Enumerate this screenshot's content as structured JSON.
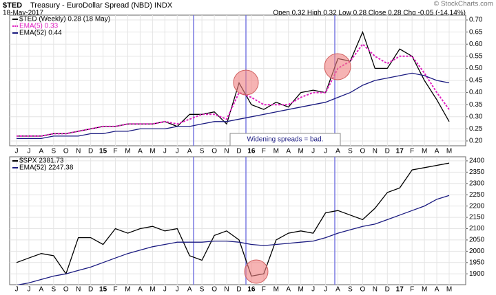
{
  "chart_data": [
    {
      "type": "line",
      "symbol": "$TED",
      "title": "Treasury - EuroDollar Spread (NBD) INDX",
      "date": "18-May-2017",
      "quote": "Open 0.32  High 0.32  Low 0.28  Close 0.28  Chg -0.05 (-14.14%)",
      "credit": "© StockCharts.com",
      "annotation": "Widening spreads = bad.",
      "categories": [
        "J",
        "J",
        "A",
        "S",
        "O",
        "N",
        "D",
        "15",
        "F",
        "M",
        "A",
        "M",
        "J",
        "J",
        "A",
        "S",
        "O",
        "N",
        "D",
        "16",
        "F",
        "M",
        "A",
        "M",
        "J",
        "J",
        "A",
        "S",
        "O",
        "N",
        "D",
        "17",
        "F",
        "M",
        "A",
        "M"
      ],
      "series": [
        {
          "name": "$TED (Weekly) 0.28 (18 May)",
          "color": "#000000",
          "values": [
            0.22,
            0.22,
            0.22,
            0.23,
            0.23,
            0.24,
            0.25,
            0.26,
            0.26,
            0.27,
            0.27,
            0.27,
            0.28,
            0.26,
            0.31,
            0.31,
            0.32,
            0.27,
            0.44,
            0.35,
            0.33,
            0.36,
            0.34,
            0.4,
            0.41,
            0.4,
            0.54,
            0.53,
            0.65,
            0.5,
            0.5,
            0.58,
            0.55,
            0.45,
            0.37,
            0.28
          ]
        },
        {
          "name": "EMA(5) 0.33",
          "color": "#e020c0",
          "values": [
            0.22,
            0.22,
            0.22,
            0.23,
            0.23,
            0.24,
            0.25,
            0.26,
            0.26,
            0.27,
            0.27,
            0.27,
            0.28,
            0.27,
            0.29,
            0.31,
            0.31,
            0.29,
            0.4,
            0.38,
            0.35,
            0.35,
            0.35,
            0.38,
            0.4,
            0.4,
            0.5,
            0.53,
            0.6,
            0.55,
            0.52,
            0.55,
            0.55,
            0.48,
            0.4,
            0.33
          ]
        },
        {
          "name": "EMA(52) 0.44",
          "color": "#1a1a80",
          "values": [
            0.21,
            0.21,
            0.21,
            0.22,
            0.22,
            0.22,
            0.23,
            0.23,
            0.24,
            0.24,
            0.25,
            0.25,
            0.25,
            0.26,
            0.26,
            0.27,
            0.28,
            0.28,
            0.29,
            0.3,
            0.31,
            0.32,
            0.33,
            0.34,
            0.35,
            0.36,
            0.38,
            0.4,
            0.43,
            0.45,
            0.46,
            0.47,
            0.48,
            0.47,
            0.45,
            0.44
          ]
        }
      ],
      "ylim": [
        0.18,
        0.72
      ],
      "yticks": [
        {
          "value": 0.2,
          "label": "0.20"
        },
        {
          "value": 0.25,
          "label": "0.25"
        },
        {
          "value": 0.3,
          "label": "0.30"
        },
        {
          "value": 0.35,
          "label": "0.35"
        },
        {
          "value": 0.4,
          "label": "0.40"
        },
        {
          "value": 0.45,
          "label": "0.45"
        },
        {
          "value": 0.5,
          "label": "0.50"
        },
        {
          "value": 0.55,
          "label": "0.55"
        },
        {
          "value": 0.6,
          "label": "0.60"
        },
        {
          "value": 0.65,
          "label": "0.65"
        },
        {
          "value": 0.7,
          "label": "0.70"
        }
      ],
      "grid": true
    },
    {
      "type": "line",
      "series": [
        {
          "name": "$SPX 2381.73",
          "color": "#000000",
          "values": [
            1950,
            1970,
            1990,
            1980,
            1900,
            2060,
            2060,
            2030,
            2100,
            2080,
            2100,
            2110,
            2090,
            2100,
            1980,
            1960,
            2070,
            2090,
            2050,
            1890,
            1900,
            2050,
            2080,
            2090,
            2080,
            2170,
            2180,
            2160,
            2140,
            2190,
            2260,
            2280,
            2360,
            2370,
            2380,
            2390
          ]
        },
        {
          "name": "EMA(52) 2247.38",
          "color": "#1a1a80",
          "values": [
            1850,
            1860,
            1875,
            1890,
            1900,
            1915,
            1930,
            1950,
            1970,
            1990,
            2005,
            2020,
            2030,
            2040,
            2040,
            2040,
            2045,
            2045,
            2040,
            2030,
            2025,
            2030,
            2035,
            2040,
            2045,
            2060,
            2080,
            2095,
            2110,
            2120,
            2140,
            2160,
            2180,
            2200,
            2230,
            2247
          ]
        }
      ],
      "ylim": [
        1852,
        2418
      ],
      "yticks": [
        1900,
        1950,
        2000,
        2050,
        2100,
        2150,
        2200,
        2250,
        2300,
        2350,
        2400
      ],
      "grid": true
    }
  ]
}
